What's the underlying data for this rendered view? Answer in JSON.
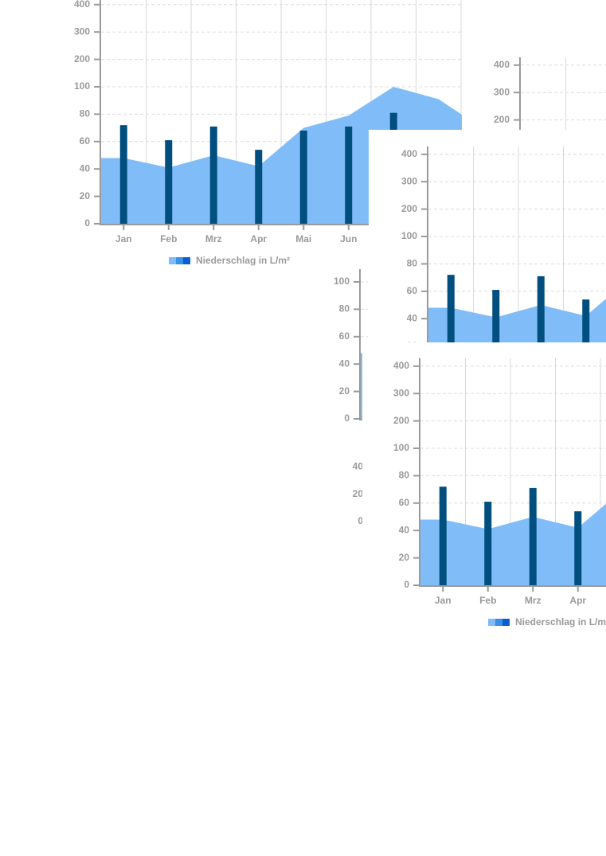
{
  "chart_data": {
    "type": "bar",
    "categories": [
      "Jan",
      "Feb",
      "Mrz",
      "Apr",
      "Mai",
      "Jun",
      null,
      null
    ],
    "series": [
      {
        "name": "Niederschlag in L/m²",
        "type": "area",
        "color": "#80bdf8",
        "values": [
          48,
          41,
          50,
          42,
          70,
          79,
          100,
          91
        ]
      },
      {
        "type": "bar",
        "color": "#004f7f",
        "values": [
          72,
          61,
          71,
          54,
          68,
          71,
          81,
          null
        ]
      }
    ],
    "ylim": [
      0,
      400
    ],
    "yticks": [
      0,
      20,
      40,
      60,
      80,
      100,
      200,
      300,
      400
    ],
    "grid": true
  }
}
